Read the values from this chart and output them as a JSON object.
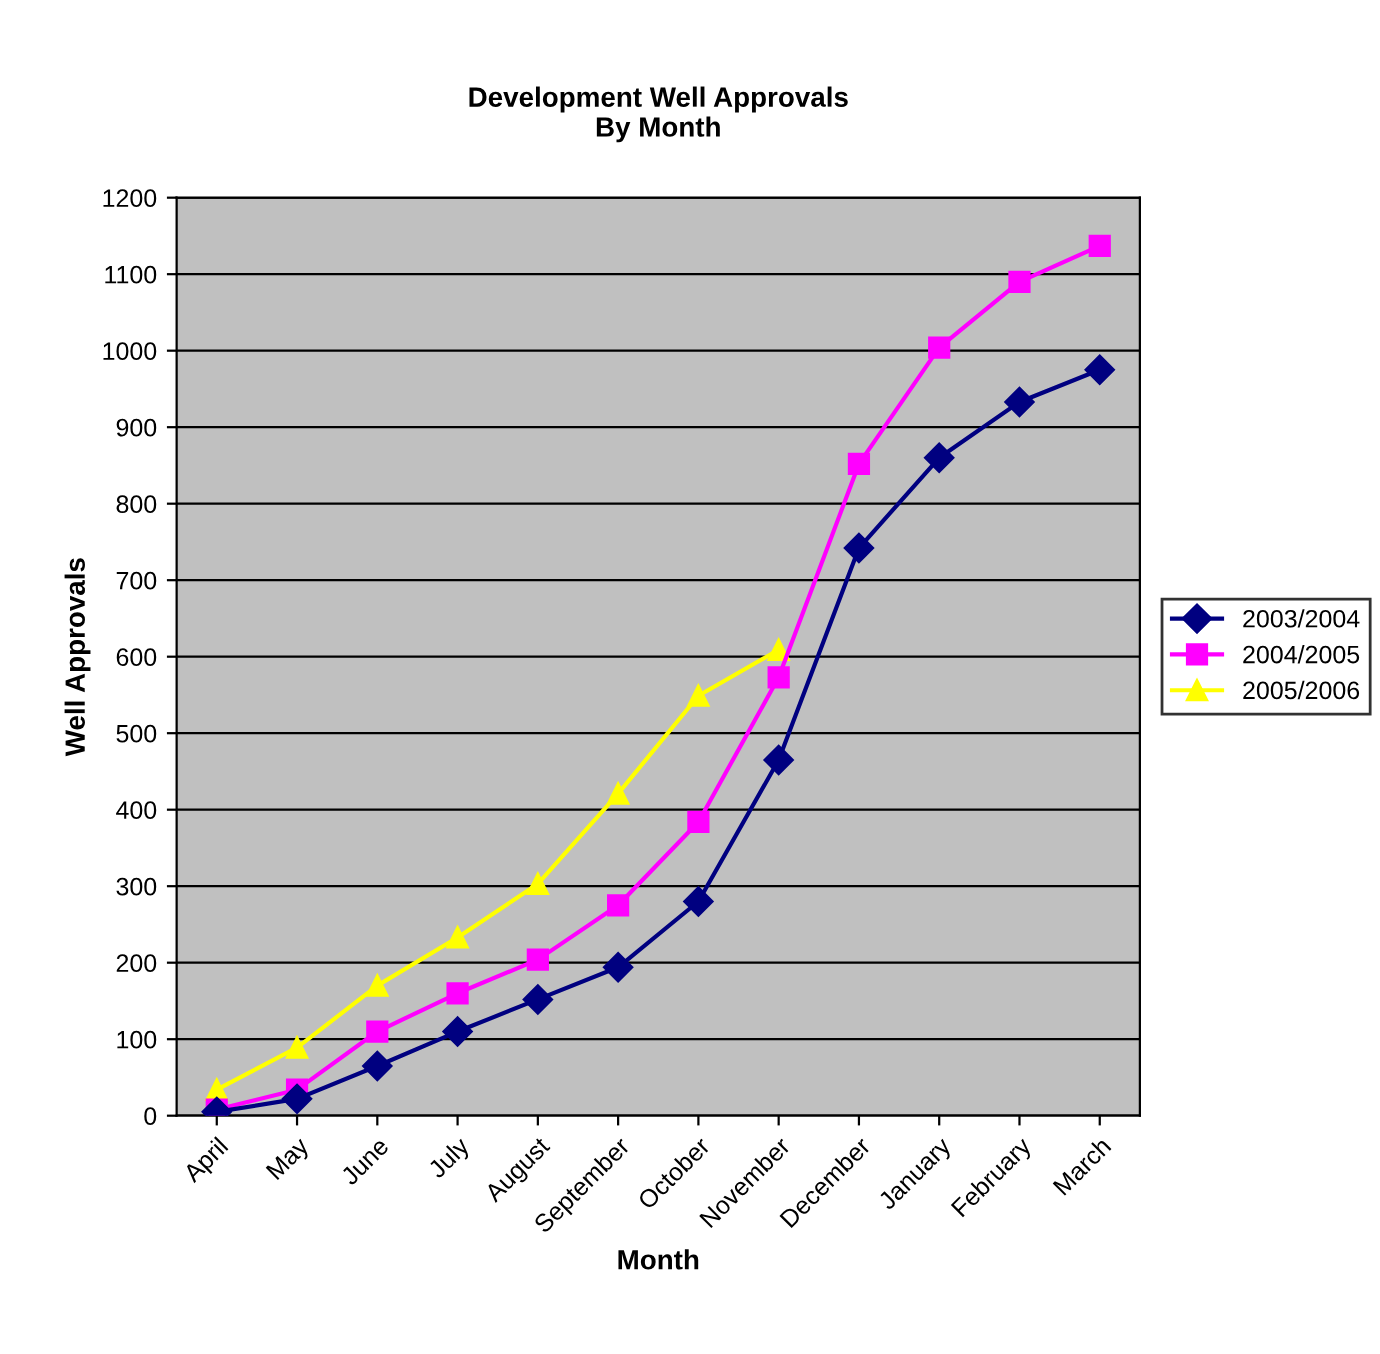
{
  "chart_data": {
    "type": "line",
    "title": "Development Well Approvals\nBy Month",
    "xlabel": "Month",
    "ylabel": "Well Approvals",
    "categories": [
      "April",
      "May",
      "June",
      "July",
      "August",
      "September",
      "October",
      "November",
      "December",
      "January",
      "February",
      "March"
    ],
    "series": [
      {
        "name": "2003/2004",
        "color": "#000080",
        "marker": "diamond",
        "values": [
          5,
          22,
          65,
          110,
          152,
          194,
          280,
          465,
          742,
          860,
          933,
          975
        ]
      },
      {
        "name": "2004/2005",
        "color": "#ff00ff",
        "marker": "square",
        "values": [
          8,
          34,
          110,
          160,
          204,
          275,
          384,
          573,
          852,
          1004,
          1090,
          1137
        ]
      },
      {
        "name": "2005/2006",
        "color": "#ffff00",
        "marker": "triangle",
        "values": [
          34,
          89,
          170,
          233,
          303,
          421,
          549,
          609,
          null,
          null,
          null,
          null
        ]
      }
    ],
    "ylim": [
      0,
      1200
    ],
    "yticks": [
      0,
      100,
      200,
      300,
      400,
      500,
      600,
      700,
      800,
      900,
      1000,
      1100,
      1200
    ],
    "grid": "y",
    "legend": "right"
  }
}
